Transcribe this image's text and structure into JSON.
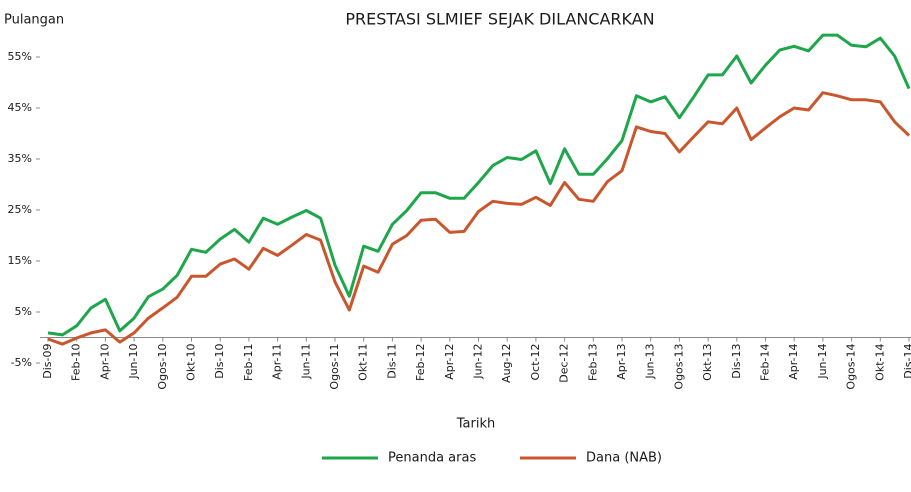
{
  "chart_data": {
    "type": "line",
    "title": "PRESTASI SLMIEF SEJAK DILANCARKAN",
    "y_label": "Pulangan",
    "x_label": "Tarikh",
    "categories": [
      "Dis-09",
      null,
      "Feb-10",
      null,
      "Apr-10",
      null,
      "Jun-10",
      null,
      "Ogos-10",
      null,
      "Okt-10",
      null,
      "Dis-10",
      null,
      "Feb-11",
      null,
      "Apr-11",
      null,
      "Jun-11",
      null,
      "Ogos-11",
      null,
      "Okt-11",
      null,
      "Dis-11",
      null,
      "Feb-12",
      null,
      "Apr-12",
      null,
      "Jun-12",
      null,
      "Aug-12",
      null,
      "Oct-12",
      null,
      "Dec-12",
      null,
      "Feb-13",
      null,
      "Apr-13",
      null,
      "Jun-13",
      null,
      "Ogos-13",
      null,
      "Okt-13",
      null,
      "Dis-13",
      null,
      "Feb-14",
      null,
      "Apr-14",
      null,
      "Jun-14",
      null,
      "Ogos-14",
      null,
      "Okt-14",
      null,
      "Dis-14"
    ],
    "series": [
      {
        "name": "Penanda aras",
        "color": "#1ea64a",
        "values": [
          0.9,
          0.5,
          2.3,
          5.8,
          7.5,
          1.3,
          3.8,
          8,
          9.5,
          12.2,
          17.3,
          16.7,
          19.3,
          21.2,
          18.7,
          23.4,
          22.2,
          23.6,
          24.9,
          23.4,
          14.2,
          8.1,
          17.9,
          16.9,
          22.2,
          24.9,
          28.4,
          28.4,
          27.3,
          27.3,
          30.4,
          33.7,
          35.3,
          34.9,
          36.6,
          30.2,
          37,
          32,
          32,
          35.1,
          38.6,
          47.4,
          46.2,
          47.2,
          43.1,
          47.2,
          51.5,
          51.5,
          55.2,
          49.9,
          53.4,
          56.4,
          57.1,
          56.2,
          59.3,
          59.3,
          57.3,
          57,
          58.7,
          55.2,
          48.8
        ]
      },
      {
        "name": "Dana (NAB)",
        "color": "#c9562c",
        "values": [
          -0.3,
          -1.3,
          -0.1,
          0.9,
          1.5,
          -0.9,
          0.9,
          3.8,
          5.8,
          7.9,
          12,
          12,
          14.4,
          15.4,
          13.4,
          17.5,
          16.1,
          18.1,
          20.2,
          19.1,
          10.9,
          5.4,
          14,
          12.8,
          18.3,
          20,
          23,
          23.2,
          20.6,
          20.8,
          24.7,
          26.7,
          26.3,
          26.1,
          27.5,
          25.9,
          30.4,
          27.1,
          26.7,
          30.6,
          32.7,
          41.3,
          40.4,
          40,
          36.4,
          39.4,
          42.3,
          41.9,
          45,
          38.8,
          41.1,
          43.3,
          45,
          44.6,
          48,
          47.4,
          46.6,
          46.6,
          46.2,
          42.3,
          39.6
        ]
      }
    ],
    "ylim": [
      -5,
      60
    ],
    "yticks": [
      {
        "value": -5,
        "label": "-5%"
      },
      {
        "value": 5,
        "label": "5%"
      },
      {
        "value": 15,
        "label": "15%"
      },
      {
        "value": 25,
        "label": "25%"
      },
      {
        "value": 35,
        "label": "35%"
      },
      {
        "value": 45,
        "label": "45%"
      },
      {
        "value": 55,
        "label": "55%"
      }
    ],
    "grid": false,
    "legend": "bottom"
  }
}
